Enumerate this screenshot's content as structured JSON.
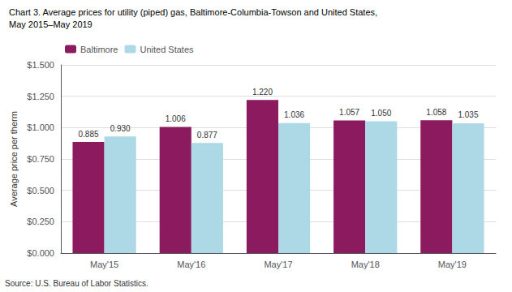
{
  "chart_data": {
    "type": "bar",
    "title": "Chart 3. Average prices for utility (piped) gas, Baltimore-Columbia-Towson and United States,",
    "subtitle": "May 2015–May 2019",
    "ylabel": "Average price per therm",
    "annotations": [
      "Source: U.S. Bureau of Labor Statistics."
    ],
    "categories": [
      "May'15",
      "May'16",
      "May'17",
      "May'18",
      "May'19"
    ],
    "series": [
      {
        "name": "Baltimore",
        "color": "#8B1A5E",
        "values": [
          0.885,
          1.006,
          1.22,
          1.057,
          1.058
        ],
        "value_labels": [
          "0.885",
          "1.006",
          "1.220",
          "1.057",
          "1.058"
        ]
      },
      {
        "name": "United States",
        "color": "#ADD8E6",
        "values": [
          0.93,
          0.877,
          1.036,
          1.05,
          1.035
        ],
        "value_labels": [
          "0.930",
          "0.877",
          "1.036",
          "1.050",
          "1.035"
        ]
      }
    ],
    "ylim": [
      0,
      1.5
    ],
    "yticks": [
      {
        "value": 0.0,
        "label": "$0.000"
      },
      {
        "value": 0.25,
        "label": "$0.250"
      },
      {
        "value": 0.5,
        "label": "$0.500"
      },
      {
        "value": 0.75,
        "label": "$0.750"
      },
      {
        "value": 1.0,
        "label": "$1.000"
      },
      {
        "value": 1.25,
        "label": "$1.250"
      },
      {
        "value": 1.5,
        "label": "$1.500"
      }
    ],
    "grid": true,
    "legend": "upper left",
    "data_labels": true
  }
}
